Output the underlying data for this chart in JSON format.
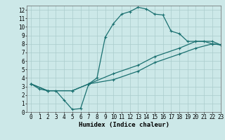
{
  "xlabel": "Humidex (Indice chaleur)",
  "bg_color": "#cce8e8",
  "grid_color": "#aacccc",
  "line_color": "#1a7070",
  "xlim": [
    -0.5,
    23
  ],
  "ylim": [
    0,
    12.5
  ],
  "xticks": [
    0,
    1,
    2,
    3,
    4,
    5,
    6,
    7,
    8,
    9,
    10,
    11,
    12,
    13,
    14,
    15,
    16,
    17,
    18,
    19,
    20,
    21,
    22,
    23
  ],
  "yticks": [
    0,
    1,
    2,
    3,
    4,
    5,
    6,
    7,
    8,
    9,
    10,
    11,
    12
  ],
  "line1_x": [
    0,
    1,
    2,
    3,
    4,
    5,
    6,
    7,
    8,
    9,
    10,
    11,
    12,
    13,
    14,
    15,
    16,
    17,
    18,
    19,
    20,
    21,
    22,
    23
  ],
  "line1_y": [
    3.3,
    2.7,
    2.5,
    2.5,
    1.4,
    0.3,
    0.4,
    3.3,
    4.0,
    8.8,
    10.4,
    11.5,
    11.8,
    12.3,
    12.1,
    11.5,
    11.4,
    9.5,
    9.2,
    8.3,
    8.3,
    8.3,
    8.0,
    7.9
  ],
  "line2_x": [
    0,
    2,
    5,
    7,
    10,
    13,
    15,
    18,
    20,
    22,
    23
  ],
  "line2_y": [
    3.3,
    2.5,
    2.5,
    3.3,
    4.5,
    5.5,
    6.5,
    7.5,
    8.3,
    8.3,
    7.9
  ],
  "line3_x": [
    0,
    2,
    5,
    7,
    10,
    13,
    15,
    18,
    20,
    22,
    23
  ],
  "line3_y": [
    3.3,
    2.5,
    2.5,
    3.3,
    3.8,
    4.8,
    5.8,
    6.8,
    7.5,
    8.0,
    7.9
  ],
  "markersize": 3,
  "linewidth": 0.9,
  "tick_fontsize": 5.5,
  "label_fontsize": 6.5
}
